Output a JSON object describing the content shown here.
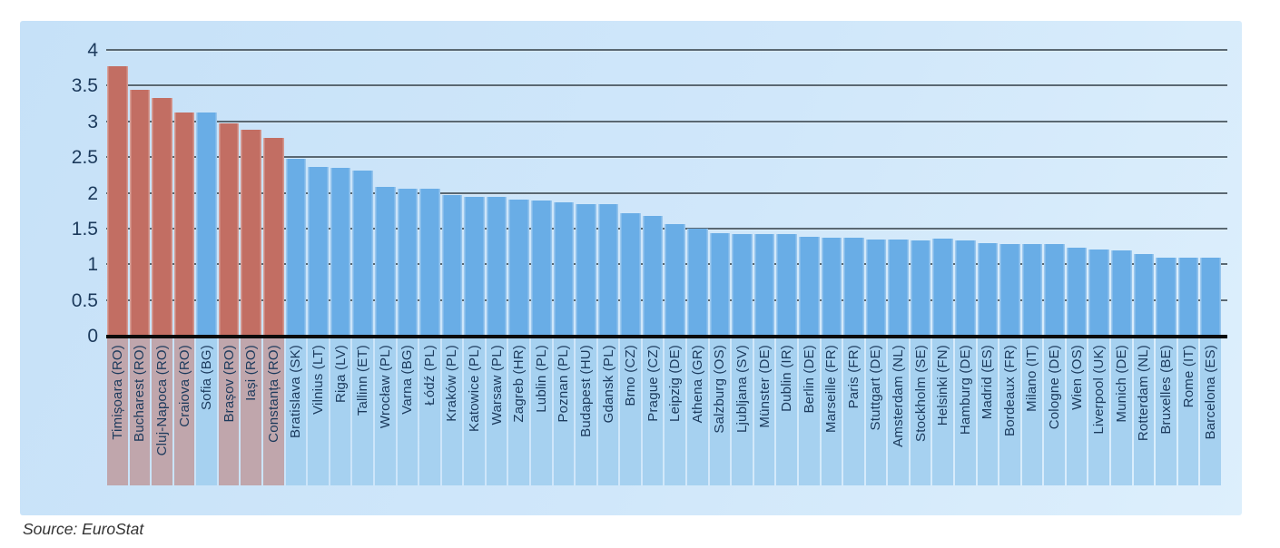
{
  "source_label": "Source: EuroStat",
  "colors": {
    "panel_bg_start": "#c6e1f8",
    "panel_bg_end": "#ddeffc",
    "bar_blue": "#69ade6",
    "bar_red": "#c26e63",
    "label_bg_blue": "#a6d1f0",
    "label_bg_red": "#c0a6ac",
    "gridline": "#5a6872",
    "axis": "#0b0b0b",
    "text": "#1c3a5c",
    "source_text": "#333333"
  },
  "chart_data": {
    "type": "bar",
    "title": "",
    "xlabel": "",
    "ylabel": "",
    "ylim": [
      0,
      4
    ],
    "grid": true,
    "legend_position": "none",
    "yticks": [
      0,
      0.5,
      1,
      1.5,
      2,
      2.5,
      3,
      3.5,
      4
    ],
    "ytick_labels": [
      "0",
      "0.5",
      "1",
      "1.5",
      "2",
      "2.5",
      "3",
      "3.5",
      "4"
    ],
    "highlight_note": "Romanian cities shown in red; all other cities in blue",
    "highlighted_indices": [
      0,
      1,
      2,
      3,
      5,
      6,
      7
    ],
    "categories": [
      "Timișoara (RO)",
      "Bucharest (RO)",
      "Cluj-Napoca (RO)",
      "Craiova (RO)",
      "Sofia (BG)",
      "Brașov (RO)",
      "Iași (RO)",
      "Constanța (RO)",
      "Bratislava (SK)",
      "Vilnius (LT)",
      "Riga (LV)",
      "Tallinn (ET)",
      "Wrocław (PL)",
      "Varna (BG)",
      "Łódź (PL)",
      "Kraków (PL)",
      "Katowice (PL)",
      "Warsaw (PL)",
      "Zagreb (HR)",
      "Lublin (PL)",
      "Poznan (PL)",
      "Budapest (HU)",
      "Gdansk (PL)",
      "Brno (CZ)",
      "Prague (CZ)",
      "Leipzig (DE)",
      "Athena (GR)",
      "Salzburg (OS)",
      "Ljubljana (SV)",
      "Münster (DE)",
      "Dublin (IR)",
      "Berlin (DE)",
      "Marseille (FR)",
      "Paris (FR)",
      "Stuttgart (DE)",
      "Amsterdam (NL)",
      "Stockholm (SE)",
      "Helsinki (FN)",
      "Hamburg (DE)",
      "Madrid (ES)",
      "Bordeaux (FR)",
      "Milano (IT)",
      "Cologne (DE)",
      "Wien (OS)",
      "Liverpool (UK)",
      "Munich (DE)",
      "Rotterdam (NL)",
      "Bruxelles (BE)",
      "Rome (IT)",
      "Barcelona (ES)"
    ],
    "values": [
      3.79,
      3.45,
      3.34,
      3.14,
      3.14,
      2.99,
      2.89,
      2.78,
      2.49,
      2.38,
      2.36,
      2.32,
      2.1,
      2.07,
      2.07,
      1.98,
      1.96,
      1.95,
      1.92,
      1.91,
      1.88,
      1.86,
      1.85,
      1.73,
      1.69,
      1.57,
      1.51,
      1.45,
      1.44,
      1.43,
      1.43,
      1.4,
      1.38,
      1.38,
      1.36,
      1.36,
      1.35,
      1.37,
      1.34,
      1.31,
      1.3,
      1.29,
      1.29,
      1.25,
      1.22,
      1.21,
      1.15,
      1.1,
      1.11,
      1.1
    ]
  }
}
